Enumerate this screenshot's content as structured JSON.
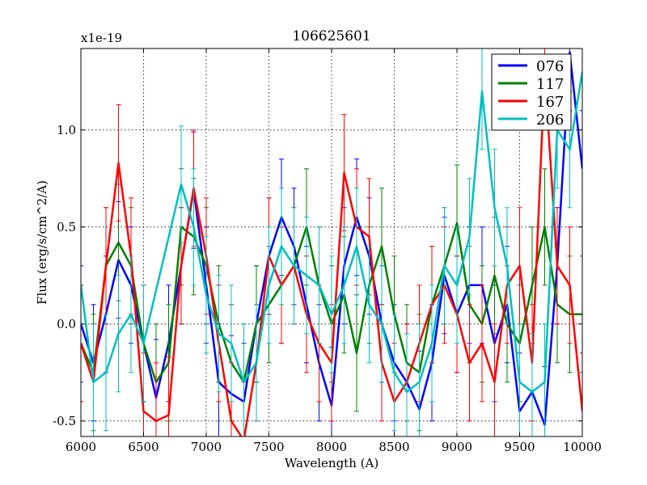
{
  "chart_data": {
    "type": "line",
    "title": "106625601",
    "xlabel": "Wavelength (A)",
    "ylabel": "Flux (erg/s/cm^2/A)",
    "y_multiplier_label": "x1e-19",
    "xlim": [
      6000,
      10000
    ],
    "ylim": [
      -0.58,
      1.42
    ],
    "grid": true,
    "legend_position": "top-right",
    "x_ticks": [
      6000,
      6500,
      7000,
      7500,
      8000,
      8500,
      9000,
      9500,
      10000
    ],
    "x_tick_labels": [
      "6000",
      "6500",
      "7000",
      "7500",
      "8000",
      "8500",
      "9000",
      "9500",
      "10000"
    ],
    "y_ticks": [
      -0.5,
      0.0,
      0.5,
      1.0
    ],
    "y_tick_labels": [
      "-0.5",
      "0.0",
      "0.5",
      "1.0"
    ],
    "error_bar_half_width": 0.3,
    "series": [
      {
        "name": "076",
        "color": "#0000ff",
        "x": [
          6000,
          6100,
          6200,
          6300,
          6400,
          6500,
          6600,
          6700,
          6800,
          6900,
          7000,
          7100,
          7200,
          7300,
          7400,
          7500,
          7600,
          7700,
          7800,
          7900,
          8000,
          8100,
          8200,
          8300,
          8400,
          8500,
          8600,
          8700,
          8800,
          8900,
          9000,
          9100,
          9200,
          9300,
          9400,
          9500,
          9600,
          9700,
          9800,
          9900,
          10000
        ],
        "y": [
          0.0,
          -0.2,
          0.05,
          0.33,
          0.2,
          -0.1,
          -0.38,
          -0.1,
          0.3,
          0.69,
          0.2,
          -0.3,
          -0.36,
          -0.4,
          0.0,
          0.35,
          0.55,
          0.4,
          0.1,
          -0.2,
          -0.42,
          0.3,
          0.55,
          0.35,
          0.0,
          -0.2,
          -0.3,
          -0.44,
          -0.2,
          0.25,
          0.05,
          0.2,
          0.2,
          -0.1,
          0.1,
          -0.45,
          -0.35,
          -0.52,
          0.3,
          1.4,
          0.8
        ]
      },
      {
        "name": "117",
        "color": "#008000",
        "x": [
          6000,
          6100,
          6200,
          6300,
          6400,
          6500,
          6600,
          6700,
          6800,
          6900,
          7000,
          7100,
          7200,
          7300,
          7400,
          7500,
          7600,
          7700,
          7800,
          7900,
          8000,
          8100,
          8200,
          8300,
          8400,
          8500,
          8600,
          8700,
          8800,
          8900,
          9000,
          9100,
          9200,
          9300,
          9400,
          9500,
          9600,
          9700,
          9800,
          9900,
          10000
        ],
        "y": [
          -0.1,
          -0.25,
          0.3,
          0.42,
          0.3,
          -0.1,
          -0.3,
          -0.2,
          0.5,
          0.45,
          0.3,
          0.0,
          -0.2,
          -0.3,
          0.0,
          0.1,
          0.2,
          0.3,
          0.5,
          0.2,
          0.0,
          0.15,
          -0.15,
          0.2,
          0.4,
          0.05,
          -0.2,
          -0.25,
          0.1,
          0.3,
          0.52,
          0.1,
          0.0,
          0.25,
          0.0,
          -0.1,
          0.2,
          0.5,
          0.1,
          0.05,
          0.05
        ]
      },
      {
        "name": "167",
        "color": "#ff0000",
        "x": [
          6000,
          6100,
          6200,
          6300,
          6400,
          6500,
          6600,
          6700,
          6800,
          6900,
          7000,
          7100,
          7200,
          7300,
          7400,
          7500,
          7600,
          7700,
          7800,
          7900,
          8000,
          8100,
          8200,
          8300,
          8400,
          8500,
          8600,
          8700,
          8800,
          8900,
          9000,
          9100,
          9200,
          9300,
          9400,
          9500,
          9600,
          9700,
          9800,
          9900,
          10000
        ],
        "y": [
          -0.1,
          -0.3,
          0.3,
          0.83,
          0.35,
          -0.45,
          -0.5,
          -0.47,
          0.3,
          0.7,
          0.35,
          -0.1,
          -0.5,
          -0.6,
          -0.2,
          0.35,
          0.2,
          0.3,
          0.05,
          -0.1,
          -0.2,
          0.78,
          0.5,
          0.45,
          -0.2,
          -0.4,
          -0.3,
          -0.1,
          0.1,
          0.2,
          0.05,
          -0.2,
          -0.1,
          -0.3,
          0.2,
          0.3,
          -0.2,
          1.3,
          0.3,
          0.2,
          -0.45
        ]
      },
      {
        "name": "206",
        "color": "#00bfbf",
        "x": [
          6000,
          6100,
          6200,
          6300,
          6400,
          6500,
          6800,
          6900,
          7000,
          7100,
          7200,
          7300,
          7400,
          7500,
          7600,
          7700,
          7800,
          7900,
          8000,
          8100,
          8200,
          8300,
          8400,
          8500,
          8600,
          8700,
          8800,
          8900,
          9000,
          9100,
          9200,
          9300,
          9400,
          9500,
          9600,
          9700,
          9800,
          9900,
          10000
        ],
        "y": [
          0.2,
          -0.3,
          -0.25,
          -0.05,
          0.05,
          -0.1,
          0.72,
          0.5,
          0.15,
          -0.05,
          -0.1,
          -0.3,
          -0.2,
          0.2,
          0.4,
          0.3,
          0.25,
          0.2,
          0.05,
          0.2,
          0.4,
          0.1,
          0.0,
          -0.25,
          -0.35,
          -0.3,
          -0.1,
          0.3,
          0.2,
          0.45,
          1.2,
          0.6,
          0.3,
          -0.3,
          -0.35,
          -0.3,
          1.0,
          0.9,
          1.3
        ]
      }
    ]
  }
}
